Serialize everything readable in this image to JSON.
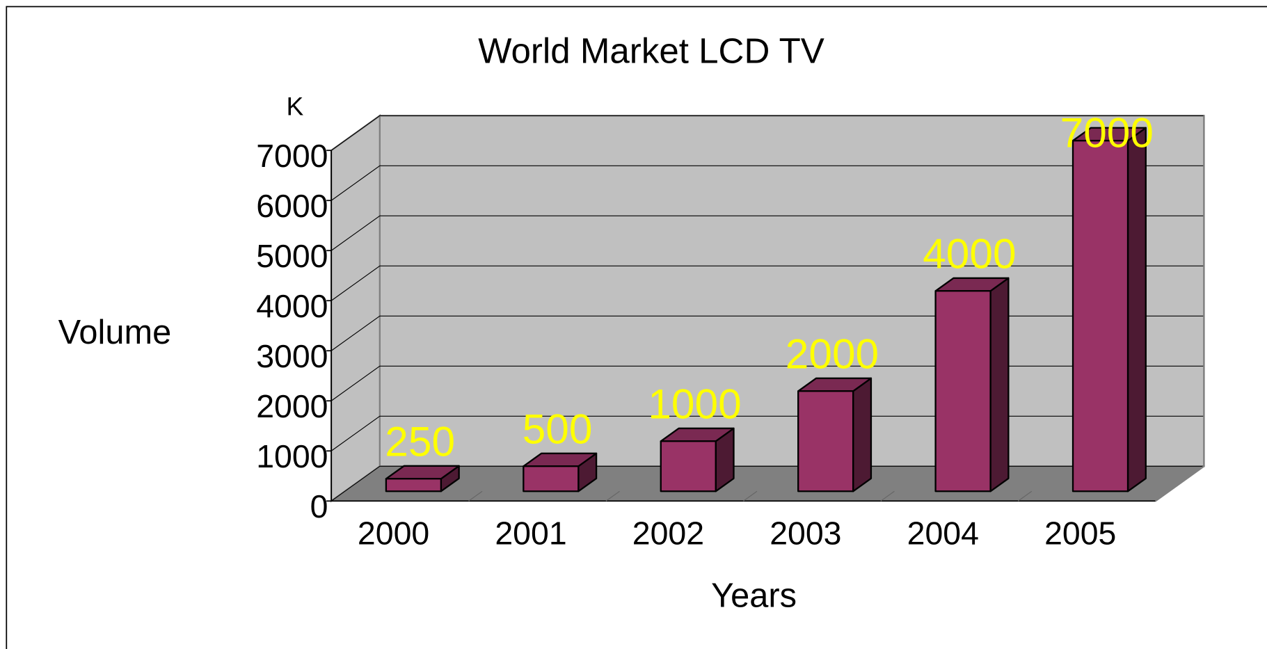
{
  "chart_data": {
    "type": "bar3d",
    "title": "World Market LCD TV",
    "unit_label": "K",
    "y_label": "Volume",
    "x_label": "Years",
    "categories": [
      "2000",
      "2001",
      "2002",
      "2003",
      "2004",
      "2005"
    ],
    "values": [
      250,
      500,
      1000,
      2000,
      4000,
      7000
    ],
    "color": "#993366",
    "label_color": "#ffff00",
    "ylim": [
      0,
      7000
    ],
    "yticks": [
      0,
      1000,
      2000,
      3000,
      4000,
      5000,
      6000,
      7000
    ],
    "grid": true
  }
}
